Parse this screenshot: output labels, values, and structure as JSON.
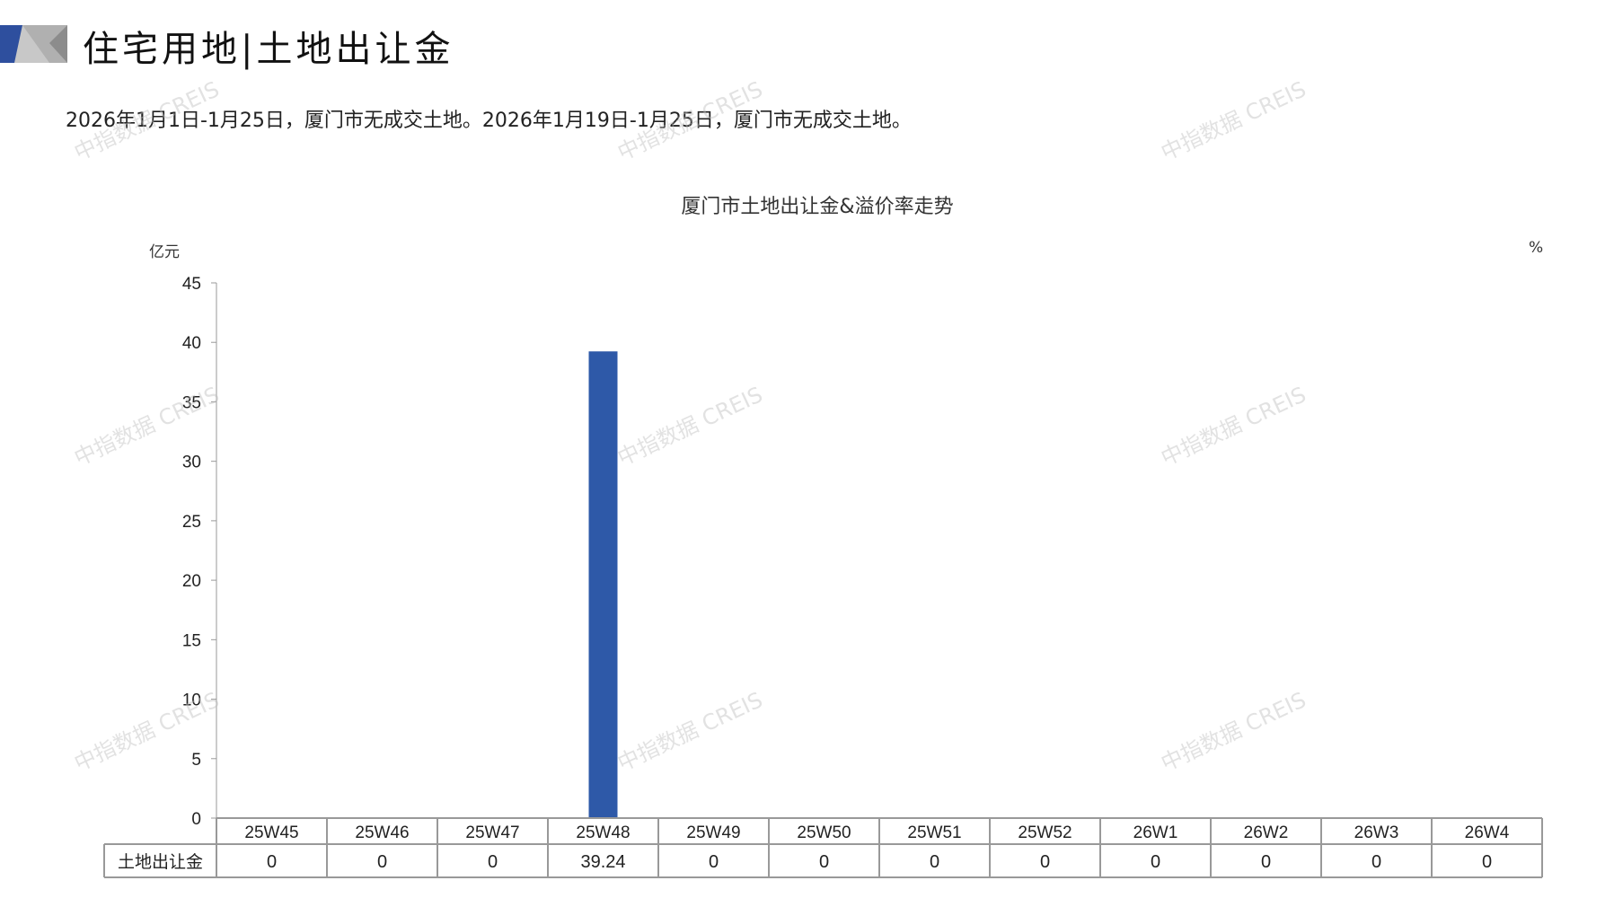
{
  "header": {
    "title": "住宅用地|土地出让金",
    "subtitle": "2026年1月1日-1月25日，厦门市无成交土地。2026年1月19日-1月25日，厦门市无成交土地。"
  },
  "watermark": "中指数据 CREIS",
  "colors": {
    "bar": "#2E59A8",
    "accent_blue": "#2E4F9E",
    "accent_gray": "#A6A6A6"
  },
  "chart_data": {
    "type": "bar",
    "title": "厦门市土地出让金&溢价率走势",
    "ylabel": "亿元",
    "y2label": "%",
    "ylim": [
      0,
      45
    ],
    "yticks": [
      0,
      5,
      10,
      15,
      20,
      25,
      30,
      35,
      40,
      45
    ],
    "categories": [
      "25W45",
      "25W46",
      "25W47",
      "25W48",
      "25W49",
      "25W50",
      "25W51",
      "25W52",
      "26W1",
      "26W2",
      "26W3",
      "26W4"
    ],
    "series": [
      {
        "name": "土地出让金",
        "values": [
          0,
          0,
          0,
          39.24,
          0,
          0,
          0,
          0,
          0,
          0,
          0,
          0
        ],
        "labels": [
          "0",
          "0",
          "0",
          "39.24",
          "0",
          "0",
          "0",
          "0",
          "0",
          "0",
          "0",
          "0"
        ]
      }
    ],
    "data_table": true,
    "grid": false
  }
}
